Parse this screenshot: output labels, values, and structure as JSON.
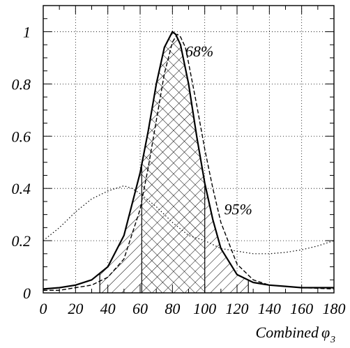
{
  "chart_data": {
    "type": "line",
    "title": "",
    "xlabel": "Combined",
    "xlabel_symbol": "φ",
    "xlabel_subscript": "3",
    "ylabel": "",
    "xlim": [
      0,
      180
    ],
    "ylim": [
      0,
      1.1
    ],
    "x_ticks": [
      0,
      20,
      40,
      60,
      80,
      100,
      120,
      140,
      160,
      180
    ],
    "x_tick_labels": [
      "0",
      "20",
      "40",
      "60",
      "80",
      "100",
      "120",
      "140",
      "160",
      "180"
    ],
    "y_ticks": [
      0,
      0.2,
      0.4,
      0.6,
      0.8,
      1
    ],
    "y_tick_labels": [
      "0",
      "0.2",
      "0.4",
      "0.6",
      "0.8",
      "1"
    ],
    "grid": true,
    "series": [
      {
        "style": "solid",
        "x": [
          0,
          10,
          20,
          30,
          40,
          50,
          60,
          65,
          70,
          75,
          80,
          82,
          85,
          90,
          95,
          100,
          105,
          110,
          120,
          130,
          140,
          150,
          160,
          170,
          180
        ],
        "y": [
          0.015,
          0.02,
          0.03,
          0.05,
          0.1,
          0.22,
          0.46,
          0.62,
          0.8,
          0.94,
          1.0,
          0.99,
          0.95,
          0.8,
          0.6,
          0.42,
          0.28,
          0.17,
          0.07,
          0.04,
          0.03,
          0.025,
          0.02,
          0.02,
          0.02
        ]
      },
      {
        "style": "dashed",
        "x": [
          0,
          10,
          20,
          30,
          40,
          50,
          60,
          65,
          70,
          75,
          80,
          83,
          85,
          88,
          90,
          95,
          100,
          105,
          110,
          120,
          130,
          140,
          160,
          180
        ],
        "y": [
          0.01,
          0.01,
          0.02,
          0.03,
          0.06,
          0.13,
          0.32,
          0.48,
          0.66,
          0.84,
          0.96,
          0.99,
          0.98,
          0.94,
          0.88,
          0.72,
          0.55,
          0.4,
          0.27,
          0.11,
          0.05,
          0.03,
          0.02,
          0.015
        ]
      },
      {
        "style": "dotted",
        "x": [
          0,
          10,
          20,
          30,
          40,
          50,
          55,
          60,
          70,
          80,
          90,
          100,
          110,
          120,
          130,
          140,
          150,
          160,
          170,
          180
        ],
        "y": [
          0.2,
          0.25,
          0.31,
          0.36,
          0.39,
          0.41,
          0.4,
          0.38,
          0.33,
          0.27,
          0.22,
          0.2,
          0.17,
          0.16,
          0.15,
          0.15,
          0.155,
          0.165,
          0.18,
          0.2
        ]
      }
    ],
    "intervals": [
      {
        "label": "68%",
        "from": 61,
        "to": 100,
        "hatch": "cross"
      },
      {
        "label": "95%",
        "from": 35,
        "to": 127,
        "hatch": "diagonal"
      }
    ]
  }
}
